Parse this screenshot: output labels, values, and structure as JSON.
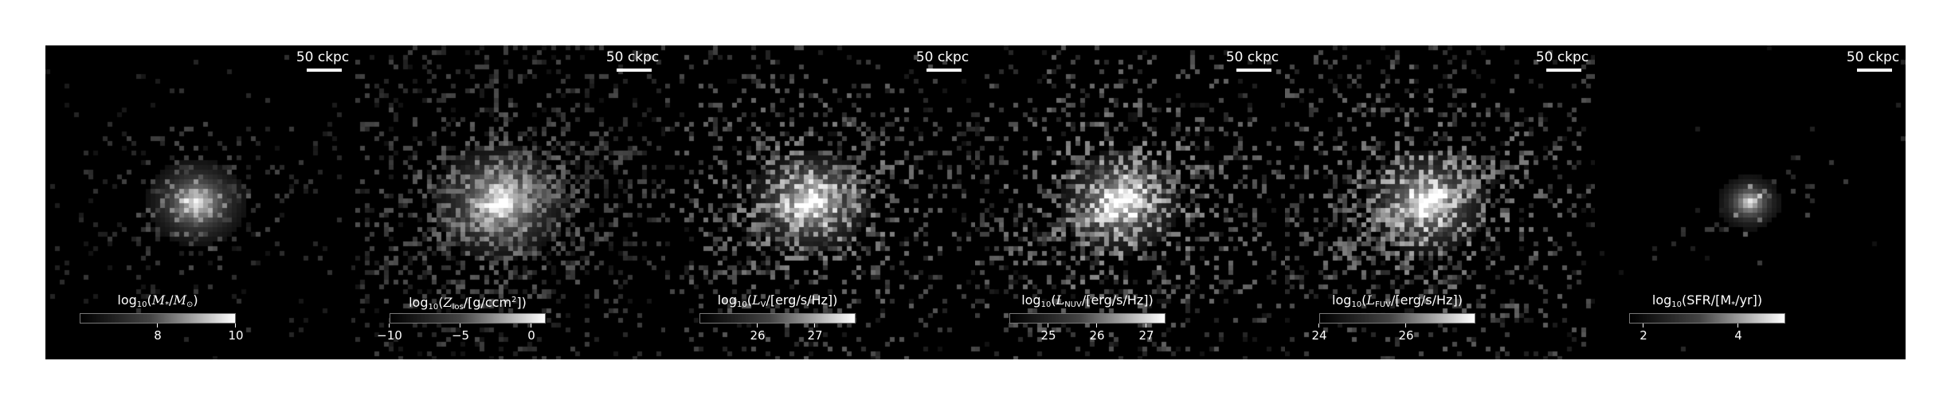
{
  "panels": [
    {
      "scale_label": "50 ckpc",
      "colorbar": {
        "label_html": "log<sub>10</sub>(<i>M</i><sub>*</sub>/<i>M</i><sub>⊙</sub>)",
        "range": [
          6,
          10
        ],
        "ticks": [
          {
            "value": 8,
            "label": "8"
          },
          {
            "value": 10,
            "label": "10"
          }
        ]
      }
    },
    {
      "scale_label": "50 ckpc",
      "colorbar": {
        "label_html": "log<sub>10</sub>(<i>Z</i><sub>los</sub>/[g/ccm<sup>2</sup>])",
        "range": [
          -10,
          1
        ],
        "ticks": [
          {
            "value": -10,
            "label": "−10"
          },
          {
            "value": -5,
            "label": "−5"
          },
          {
            "value": 0,
            "label": "0"
          }
        ]
      }
    },
    {
      "scale_label": "50 ckpc",
      "colorbar": {
        "label_html": "log<sub>10</sub>(<i>L</i><sub>V</sub>/[erg/s/Hz])",
        "range": [
          25,
          27.7
        ],
        "ticks": [
          {
            "value": 26,
            "label": "26"
          },
          {
            "value": 27,
            "label": "27"
          }
        ]
      }
    },
    {
      "scale_label": "50 ckpc",
      "colorbar": {
        "label_html": "log<sub>10</sub>(<i>L</i><sub>NUV</sub>/[erg/s/Hz])",
        "range": [
          24.2,
          27.4
        ],
        "ticks": [
          {
            "value": 25,
            "label": "25"
          },
          {
            "value": 26,
            "label": "26"
          },
          {
            "value": 27,
            "label": "27"
          }
        ]
      }
    },
    {
      "scale_label": "50 ckpc",
      "colorbar": {
        "label_html": "log<sub>10</sub>(<i>L</i><sub>FUV</sub>/[erg/s/Hz])",
        "range": [
          24,
          27.6
        ],
        "ticks": [
          {
            "value": 24,
            "label": "24"
          },
          {
            "value": 26,
            "label": "26"
          }
        ]
      }
    },
    {
      "scale_label": "50 ckpc",
      "colorbar": {
        "label_html": "log<sub>10</sub>(SFR/[M<sub>*</sub>/yr])",
        "range": [
          1.7,
          5
        ],
        "ticks": [
          {
            "value": 2,
            "label": "2"
          },
          {
            "value": 4,
            "label": "4"
          }
        ]
      }
    }
  ],
  "colors": {
    "background": "#000000",
    "frame": "#ffffff",
    "text": "#ffffff",
    "colormap": "gray"
  }
}
